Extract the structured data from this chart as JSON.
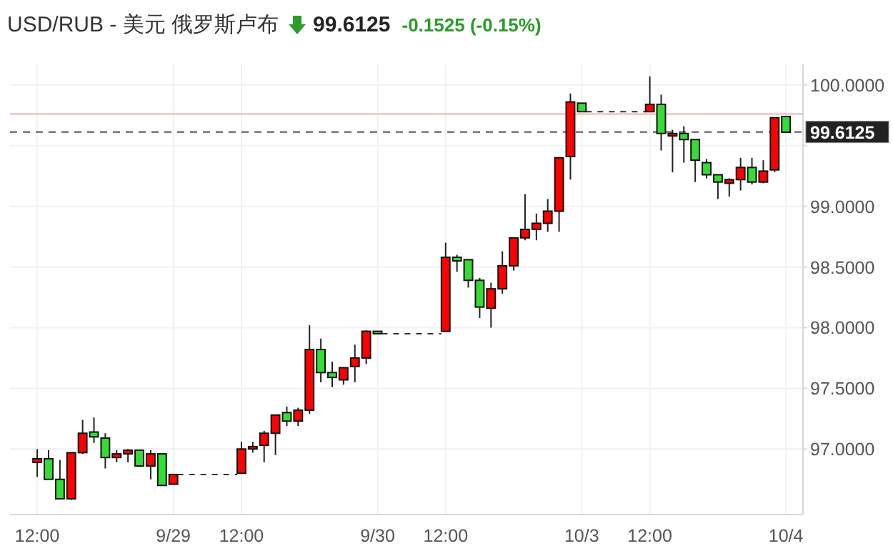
{
  "chart_data": {
    "type": "candlestick",
    "title": "USD/RUB - 美元 俄罗斯卢布",
    "annotations": [
      "99.6125",
      "-0.1525 (-0.15%)"
    ],
    "categories": [
      "12:00",
      null,
      null,
      null,
      null,
      null,
      null,
      null,
      null,
      null,
      null,
      null,
      "9/29",
      null,
      null,
      null,
      null,
      null,
      "12:00",
      null,
      null,
      null,
      null,
      null,
      null,
      null,
      null,
      null,
      null,
      null,
      "9/30",
      null,
      null,
      null,
      null,
      null,
      "12:00",
      null,
      null,
      null,
      null,
      null,
      null,
      null,
      null,
      null,
      null,
      null,
      "10/3",
      null,
      null,
      null,
      null,
      null,
      "12:00",
      null,
      null,
      null,
      null,
      null,
      null,
      null,
      null,
      null,
      null,
      null,
      "10/4"
    ],
    "ohlc": [
      [
        96.89,
        97.0,
        96.77,
        96.92
      ],
      [
        96.92,
        96.99,
        96.75,
        96.75
      ],
      [
        96.75,
        96.91,
        96.59,
        96.59
      ],
      [
        96.59,
        96.97,
        96.58,
        96.97
      ],
      [
        96.97,
        97.24,
        96.96,
        97.13
      ],
      [
        97.14,
        97.26,
        97.05,
        97.1
      ],
      [
        97.09,
        97.13,
        96.84,
        96.93
      ],
      [
        96.93,
        96.99,
        96.89,
        96.96
      ],
      [
        96.96,
        97.0,
        96.89,
        96.99
      ],
      [
        96.99,
        96.99,
        96.86,
        96.86
      ],
      [
        96.86,
        96.99,
        96.75,
        96.96
      ],
      [
        96.96,
        96.96,
        96.7,
        96.7
      ],
      [
        96.71,
        96.79,
        96.71,
        96.79
      ],
      null,
      null,
      null,
      null,
      null,
      [
        96.8,
        97.06,
        96.8,
        97.0
      ],
      [
        97.0,
        97.06,
        96.97,
        97.02
      ],
      [
        97.03,
        97.15,
        96.89,
        97.13
      ],
      [
        97.13,
        97.28,
        96.95,
        97.28
      ],
      [
        97.3,
        97.35,
        97.19,
        97.23
      ],
      [
        97.23,
        97.34,
        97.19,
        97.32
      ],
      [
        97.32,
        98.02,
        97.29,
        97.82
      ],
      [
        97.82,
        97.91,
        97.55,
        97.63
      ],
      [
        97.63,
        97.72,
        97.51,
        97.59
      ],
      [
        97.57,
        97.67,
        97.53,
        97.67
      ],
      [
        97.68,
        97.86,
        97.55,
        97.75
      ],
      [
        97.75,
        97.98,
        97.7,
        97.97
      ],
      [
        97.97,
        97.97,
        97.95,
        97.95
      ],
      null,
      null,
      null,
      null,
      null,
      [
        97.97,
        98.7,
        97.97,
        98.58
      ],
      [
        98.58,
        98.6,
        98.46,
        98.55
      ],
      [
        98.56,
        98.56,
        98.33,
        98.39
      ],
      [
        98.39,
        98.41,
        98.08,
        98.17
      ],
      [
        98.16,
        98.37,
        98.0,
        98.32
      ],
      [
        98.32,
        98.63,
        98.28,
        98.51
      ],
      [
        98.51,
        98.74,
        98.47,
        98.74
      ],
      [
        98.74,
        99.1,
        98.72,
        98.81
      ],
      [
        98.81,
        98.94,
        98.72,
        98.86
      ],
      [
        98.86,
        99.06,
        98.79,
        98.96
      ],
      [
        98.96,
        99.4,
        98.79,
        99.4
      ],
      [
        99.41,
        99.93,
        99.22,
        99.86
      ],
      [
        99.85,
        99.85,
        99.78,
        99.78
      ],
      null,
      null,
      null,
      null,
      null,
      [
        99.78,
        100.07,
        99.78,
        99.84
      ],
      [
        99.84,
        99.92,
        99.46,
        99.6
      ],
      [
        99.58,
        99.63,
        99.28,
        99.6
      ],
      [
        99.6,
        99.66,
        99.36,
        99.55
      ],
      [
        99.55,
        99.55,
        99.2,
        99.38
      ],
      [
        99.36,
        99.39,
        99.23,
        99.26
      ],
      [
        99.26,
        99.26,
        99.06,
        99.2
      ],
      [
        99.19,
        99.23,
        99.08,
        99.22
      ],
      [
        99.22,
        99.4,
        99.13,
        99.32
      ],
      [
        99.32,
        99.4,
        99.18,
        99.2
      ],
      [
        99.2,
        99.38,
        99.19,
        99.29
      ],
      [
        99.3,
        99.73,
        99.28,
        99.73
      ],
      [
        99.74,
        99.74,
        99.61,
        99.61
      ]
    ],
    "colors": [
      "#ff0000",
      "#33dd33",
      "#33dd33",
      "#ff0000",
      "#ff0000",
      "#33dd33",
      "#33dd33",
      "#ff0000",
      "#ff0000",
      "#33dd33",
      "#ff0000",
      "#33dd33",
      "#ff0000",
      null,
      null,
      null,
      null,
      null,
      "#ff0000",
      "#ff0000",
      "#ff0000",
      "#ff0000",
      "#33dd33",
      "#ff0000",
      "#ff0000",
      "#33dd33",
      "#33dd33",
      "#ff0000",
      "#ff0000",
      "#ff0000",
      "#33dd33",
      null,
      null,
      null,
      null,
      null,
      "#ff0000",
      "#33dd33",
      "#33dd33",
      "#33dd33",
      "#ff0000",
      "#ff0000",
      "#ff0000",
      "#ff0000",
      "#ff0000",
      "#ff0000",
      "#ff0000",
      "#ff0000",
      "#33dd33",
      null,
      null,
      null,
      null,
      null,
      "#ff0000",
      "#33dd33",
      "#ff0000",
      "#33dd33",
      "#33dd33",
      "#33dd33",
      "#33dd33",
      "#ff0000",
      "#ff0000",
      "#33dd33",
      "#ff0000",
      "#ff0000",
      "#33dd33"
    ],
    "ylim": [
      96.46,
      100.17
    ],
    "yticks": [
      {
        "value": 97,
        "label": "97.0000"
      },
      {
        "value": 97.5,
        "label": "97.5000"
      },
      {
        "value": 98,
        "label": "98.0000"
      },
      {
        "value": 98.5,
        "label": "98.5000"
      },
      {
        "value": 99,
        "label": "99.0000"
      },
      {
        "value": 99.5,
        "label": null
      },
      {
        "value": 100,
        "label": "100.0000"
      }
    ],
    "ref_lines": [
      {
        "axis": "y",
        "value": 99.76,
        "color": "#f4b0b0",
        "line_style": "solid"
      },
      {
        "axis": "y",
        "value": 99.6125,
        "label": "99.6125",
        "color": "#555555",
        "line_style": "dashed"
      }
    ],
    "grid": true
  }
}
